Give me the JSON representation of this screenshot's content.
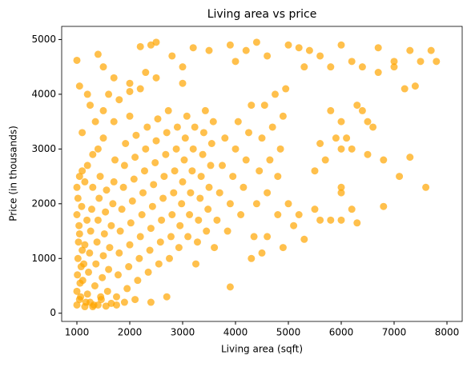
{
  "chart_data": {
    "type": "scatter",
    "title": "Living area vs price",
    "x_label": "Living area (sqft)",
    "y_label": "Price (in thousands)",
    "color": "#ffa500",
    "opacity": 0.7,
    "xlim": [
      712,
      8288
    ],
    "ylim": [
      -150,
      5240
    ],
    "xticks": [
      1000,
      2000,
      3000,
      4000,
      5000,
      6000,
      7000,
      8000
    ],
    "yticks": [
      0,
      1000,
      2000,
      3000,
      4000,
      5000
    ],
    "x": [
      1000,
      1000,
      1010,
      1020,
      1030,
      1040,
      1050,
      1060,
      1080,
      1100,
      1000,
      1020,
      1050,
      1070,
      1090,
      1110,
      1130,
      1150,
      1170,
      1190,
      1200,
      1220,
      1240,
      1260,
      1280,
      1300,
      1320,
      1340,
      1360,
      1380,
      1400,
      1420,
      1440,
      1460,
      1480,
      1500,
      1520,
      1540,
      1560,
      1580,
      1600,
      1620,
      1650,
      1680,
      1700,
      1720,
      1750,
      1780,
      1800,
      1820,
      1850,
      1880,
      1900,
      1920,
      1950,
      1980,
      2000,
      2020,
      2050,
      2080,
      2100,
      2120,
      2150,
      2180,
      2200,
      2230,
      2250,
      2280,
      2300,
      2330,
      2350,
      2380,
      2400,
      2430,
      2450,
      2480,
      2500,
      2530,
      2550,
      2580,
      2600,
      2630,
      2650,
      2680,
      2700,
      2730,
      2750,
      2780,
      2800,
      2830,
      2850,
      2880,
      2900,
      2930,
      2950,
      2980,
      3000,
      3030,
      3050,
      3080,
      3100,
      3130,
      3150,
      3180,
      3200,
      3230,
      3250,
      3280,
      3300,
      3330,
      3350,
      3380,
      3400,
      3430,
      3450,
      3480,
      3500,
      3530,
      3550,
      3580,
      3600,
      3650,
      3700,
      3750,
      3800,
      3850,
      3900,
      3950,
      4000,
      4050,
      4100,
      4150,
      4200,
      4250,
      4300,
      4350,
      4400,
      4450,
      4500,
      4550,
      4600,
      4650,
      4700,
      4750,
      4800,
      4850,
      4900,
      4950,
      1150,
      1250,
      1300,
      1400,
      1450,
      1550,
      1650,
      1750,
      1900,
      2100,
      2400,
      2700,
      1000,
      1050,
      1100,
      1150,
      1200,
      1300,
      1400,
      1500,
      1700,
      2000,
      1100,
      1250,
      1350,
      1500,
      1600,
      1800,
      2000,
      2200,
      2500,
      3000,
      1000,
      1050,
      1200,
      1400,
      1500,
      1700,
      2000,
      2200,
      2400,
      2500,
      2300,
      2800,
      3000,
      3200,
      3500,
      3900,
      4000,
      4200,
      4400,
      4600,
      5000,
      5200,
      5300,
      5400,
      5600,
      5800,
      6000,
      6200,
      6400,
      6700,
      7000,
      7000,
      7300,
      7500,
      7800,
      7700,
      7400,
      7200,
      6700,
      6600,
      6300,
      6400,
      6500,
      6000,
      6100,
      6200,
      5900,
      5800,
      5600,
      5500,
      5700,
      6000,
      6000,
      6000,
      6200,
      6000,
      5800,
      6300,
      6500,
      6800,
      7300,
      7100,
      7600,
      6800,
      5500,
      5200,
      5600,
      5100,
      5300,
      4900,
      5000,
      4800,
      4600,
      4500,
      3900,
      4300
    ],
    "y": [
      150,
      400,
      700,
      1000,
      1300,
      1600,
      250,
      550,
      850,
      1150,
      1800,
      2100,
      1450,
      300,
      1950,
      600,
      900,
      1250,
      200,
      1700,
      350,
      750,
      1100,
      1500,
      1900,
      2300,
      150,
      500,
      900,
      1300,
      1700,
      2100,
      2500,
      250,
      650,
      1050,
      1450,
      1850,
      2250,
      400,
      800,
      1200,
      1600,
      2000,
      2400,
      2800,
      300,
      700,
      1100,
      1500,
      1900,
      2300,
      2700,
      3100,
      450,
      850,
      1250,
      1650,
      2050,
      2450,
      2850,
      3250,
      600,
      1000,
      1400,
      1800,
      2200,
      2600,
      3000,
      3400,
      750,
      1150,
      1550,
      1950,
      2350,
      2750,
      3150,
      3550,
      900,
      1300,
      1700,
      2100,
      2500,
      2900,
      3300,
      3700,
      1000,
      1400,
      1800,
      2200,
      2600,
      3000,
      3400,
      1200,
      1600,
      2000,
      2400,
      2800,
      3200,
      3600,
      1400,
      1800,
      2200,
      2600,
      3000,
      3400,
      900,
      1300,
      1700,
      2100,
      2500,
      2900,
      3300,
      3700,
      1500,
      1900,
      2300,
      2700,
      3100,
      3500,
      1200,
      1700,
      2200,
      2700,
      3200,
      1500,
      2000,
      2500,
      3000,
      3500,
      1800,
      2300,
      2800,
      3300,
      3800,
      1400,
      2000,
      2600,
      3200,
      3800,
      2200,
      2800,
      3400,
      4000,
      1800,
      3000,
      3600,
      4100,
      120,
      200,
      120,
      150,
      300,
      130,
      180,
      150,
      200,
      250,
      200,
      300,
      2300,
      2500,
      2600,
      2400,
      2700,
      2900,
      3000,
      3200,
      3500,
      3600,
      3300,
      3800,
      3500,
      3700,
      4000,
      3900,
      4200,
      4100,
      4300,
      4200,
      4620,
      4150,
      4000,
      4730,
      4500,
      4300,
      4050,
      4870,
      4900,
      4950,
      4400,
      4700,
      4500,
      4850,
      4800,
      4900,
      4600,
      4800,
      4950,
      4700,
      4900,
      4850,
      4500,
      4800,
      4700,
      4500,
      4900,
      4600,
      4500,
      4850,
      4600,
      4500,
      4800,
      4600,
      4600,
      4800,
      4150,
      4100,
      4400,
      3400,
      3800,
      3700,
      3500,
      3500,
      3200,
      3000,
      3200,
      3700,
      3100,
      2600,
      2800,
      3000,
      2300,
      2200,
      1900,
      1700,
      1700,
      1650,
      2900,
      2800,
      2850,
      2500,
      2300,
      1950,
      1900,
      1800,
      1700,
      1600,
      1350,
      1200,
      2000,
      2500,
      1400,
      1100,
      480,
      1000
    ]
  }
}
